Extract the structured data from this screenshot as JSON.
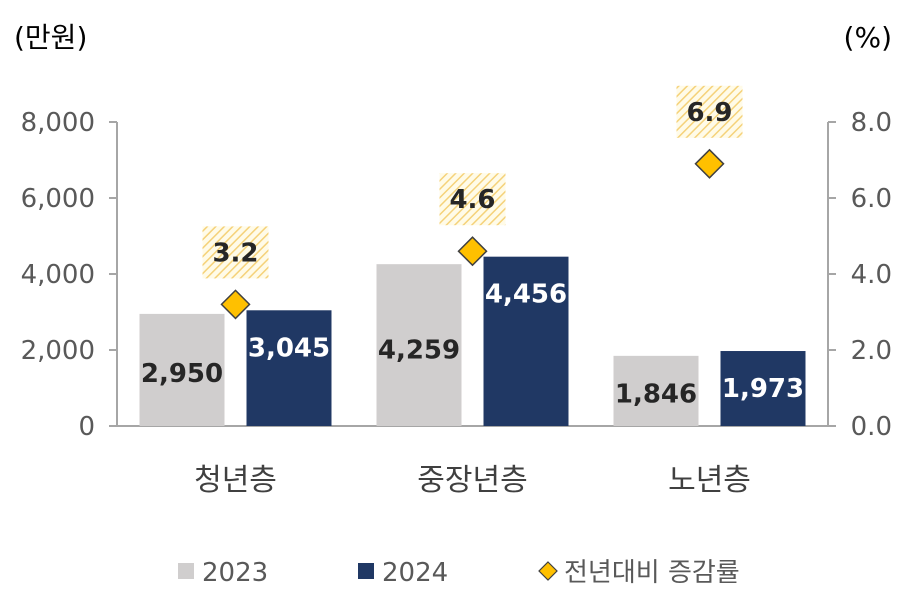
{
  "chart_data": {
    "type": "bar",
    "left_axis_unit": "(만원)",
    "right_axis_unit": "(%)",
    "categories": [
      "청년층",
      "중장년층",
      "노년층"
    ],
    "series": [
      {
        "name": "2023",
        "type": "bar",
        "axis": "left",
        "color": "#d0cece",
        "values": [
          2950,
          4259,
          1846
        ],
        "labels": [
          "2,950",
          "4,259",
          "1,846"
        ]
      },
      {
        "name": "2024",
        "type": "bar",
        "axis": "left",
        "color": "#203864",
        "values": [
          3045,
          4456,
          1973
        ],
        "labels": [
          "3,045",
          "4,456",
          "1,973"
        ]
      },
      {
        "name": "전년대비 증감률",
        "type": "scatter",
        "marker": "diamond",
        "axis": "right",
        "color": "#ffc000",
        "values": [
          3.2,
          4.6,
          6.9
        ],
        "labels": [
          "3.2",
          "4.6",
          "6.9"
        ]
      }
    ],
    "left_axis": {
      "ylim": [
        0,
        8000
      ],
      "ticks": [
        "0",
        "2,000",
        "4,000",
        "6,000",
        "8,000"
      ]
    },
    "right_axis": {
      "ylim": [
        0,
        8
      ],
      "ticks": [
        "0.0",
        "2.0",
        "4.0",
        "6.0",
        "8.0"
      ]
    },
    "grid": false,
    "legend_position": "bottom"
  }
}
